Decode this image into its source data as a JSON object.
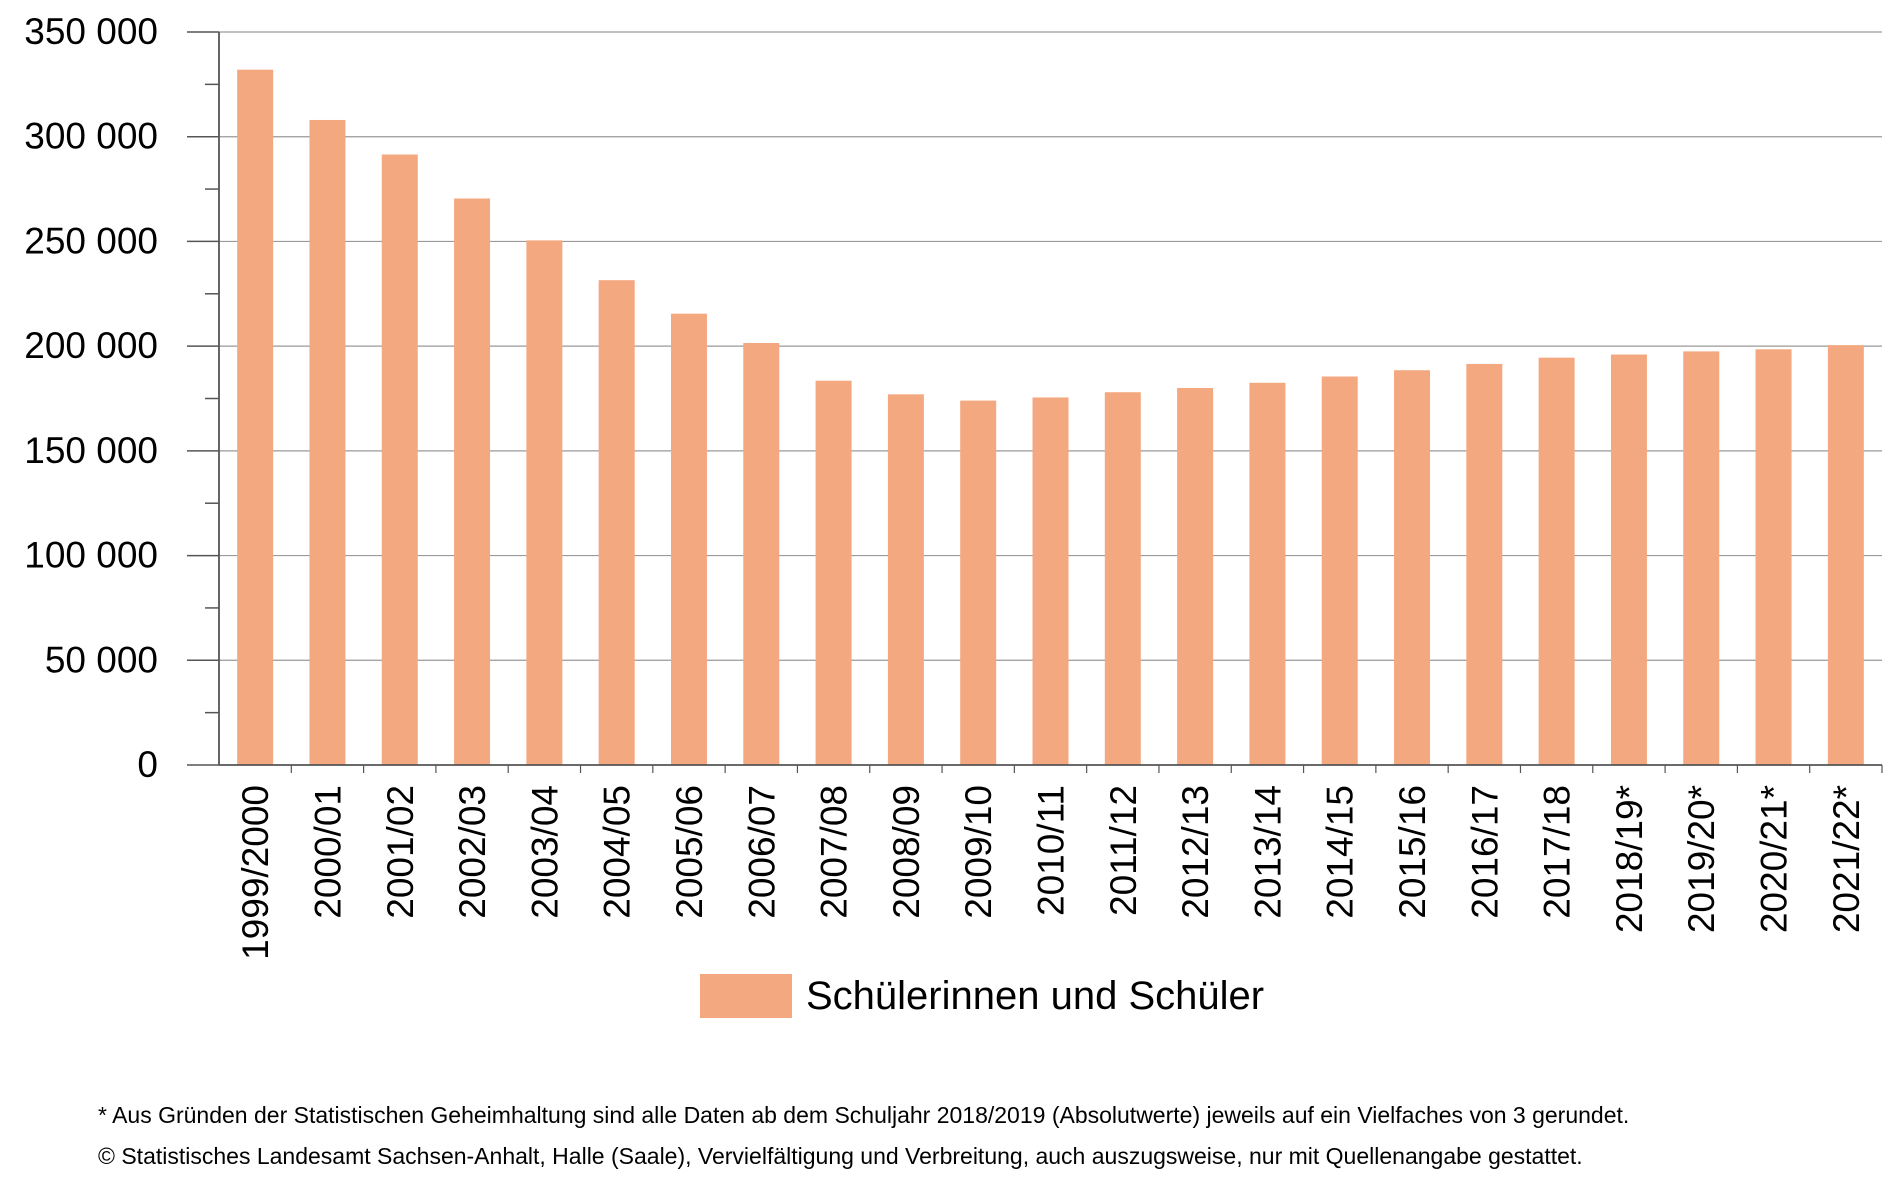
{
  "chart_data": {
    "type": "bar",
    "categories": [
      "1999/2000",
      "2000/01",
      "2001/02",
      "2002/03",
      "2003/04",
      "2004/05",
      "2005/06",
      "2006/07",
      "2007/08",
      "2008/09",
      "2009/10",
      "2010/11",
      "2011/12",
      "2012/13",
      "2013/14",
      "2014/15",
      "2015/16",
      "2016/17",
      "2017/18",
      "2018/19*",
      "2019/20*",
      "2020/21*",
      "2021/22*"
    ],
    "series": [
      {
        "name": "Schülerinnen und Schüler",
        "values": [
          332000,
          308000,
          291500,
          270500,
          250500,
          231500,
          215500,
          201500,
          183500,
          177000,
          174000,
          175500,
          178000,
          180000,
          182500,
          185500,
          188500,
          191500,
          194500,
          196000,
          197500,
          198500,
          200500
        ]
      }
    ],
    "ylim": [
      0,
      350000
    ],
    "yticks": [
      0,
      50000,
      100000,
      150000,
      200000,
      250000,
      300000,
      350000
    ],
    "ytick_labels": [
      "0",
      "50 000",
      "100 000",
      "150 000",
      "200 000",
      "250 000",
      "300 000",
      "350 000"
    ],
    "grid": true,
    "legend": "bottom",
    "bar_color": "#F4A880",
    "title": "",
    "xlabel": "",
    "ylabel": ""
  },
  "footnotes": {
    "note1": "* Aus Gründen der Statistischen Geheimhaltung sind alle Daten ab dem Schuljahr 2018/2019 (Absolutwerte) jeweils auf ein Vielfaches von 3 gerundet.",
    "note2": "© Statistisches Landesamt Sachsen-Anhalt, Halle (Saale), Vervielfältigung und Verbreitung, auch auszugsweise, nur mit Quellenangabe gestattet."
  }
}
